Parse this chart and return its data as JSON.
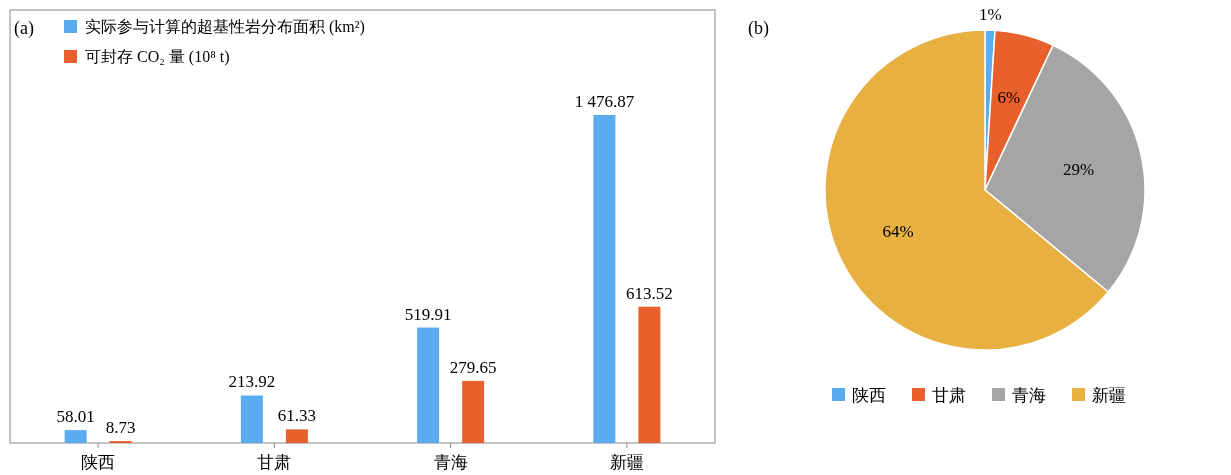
{
  "chart_data": [
    {
      "type": "bar",
      "title": "(a)",
      "categories": [
        "陕西",
        "甘肃",
        "青海",
        "新疆"
      ],
      "legend": "top left",
      "series": [
        {
          "name": "实际参与计算的超基性岩分布面积 (km²)",
          "color": "#5aabf0",
          "values": [
            58.01,
            213.92,
            519.91,
            1476.87
          ],
          "value_labels": [
            "58.01",
            "213.92",
            "519.91",
            "1 476.87"
          ]
        },
        {
          "name": "可封存 CO₂ 量 (10⁸ t)",
          "color": "#e8602c",
          "values": [
            8.73,
            61.33,
            279.65,
            613.52
          ],
          "value_labels": [
            "8.73",
            "61.33",
            "279.65",
            "613.52"
          ]
        }
      ]
    },
    {
      "type": "pie",
      "title": "(b)",
      "categories": [
        "陕西",
        "甘肃",
        "青海",
        "新疆"
      ],
      "values": [
        1,
        6,
        29,
        64
      ],
      "colors": [
        "#5aabf0",
        "#e8602c",
        "#a5a5a5",
        "#e8b040"
      ],
      "value_labels": [
        "1%",
        "6%",
        "29%",
        "64%"
      ],
      "legend": "bottom"
    }
  ]
}
